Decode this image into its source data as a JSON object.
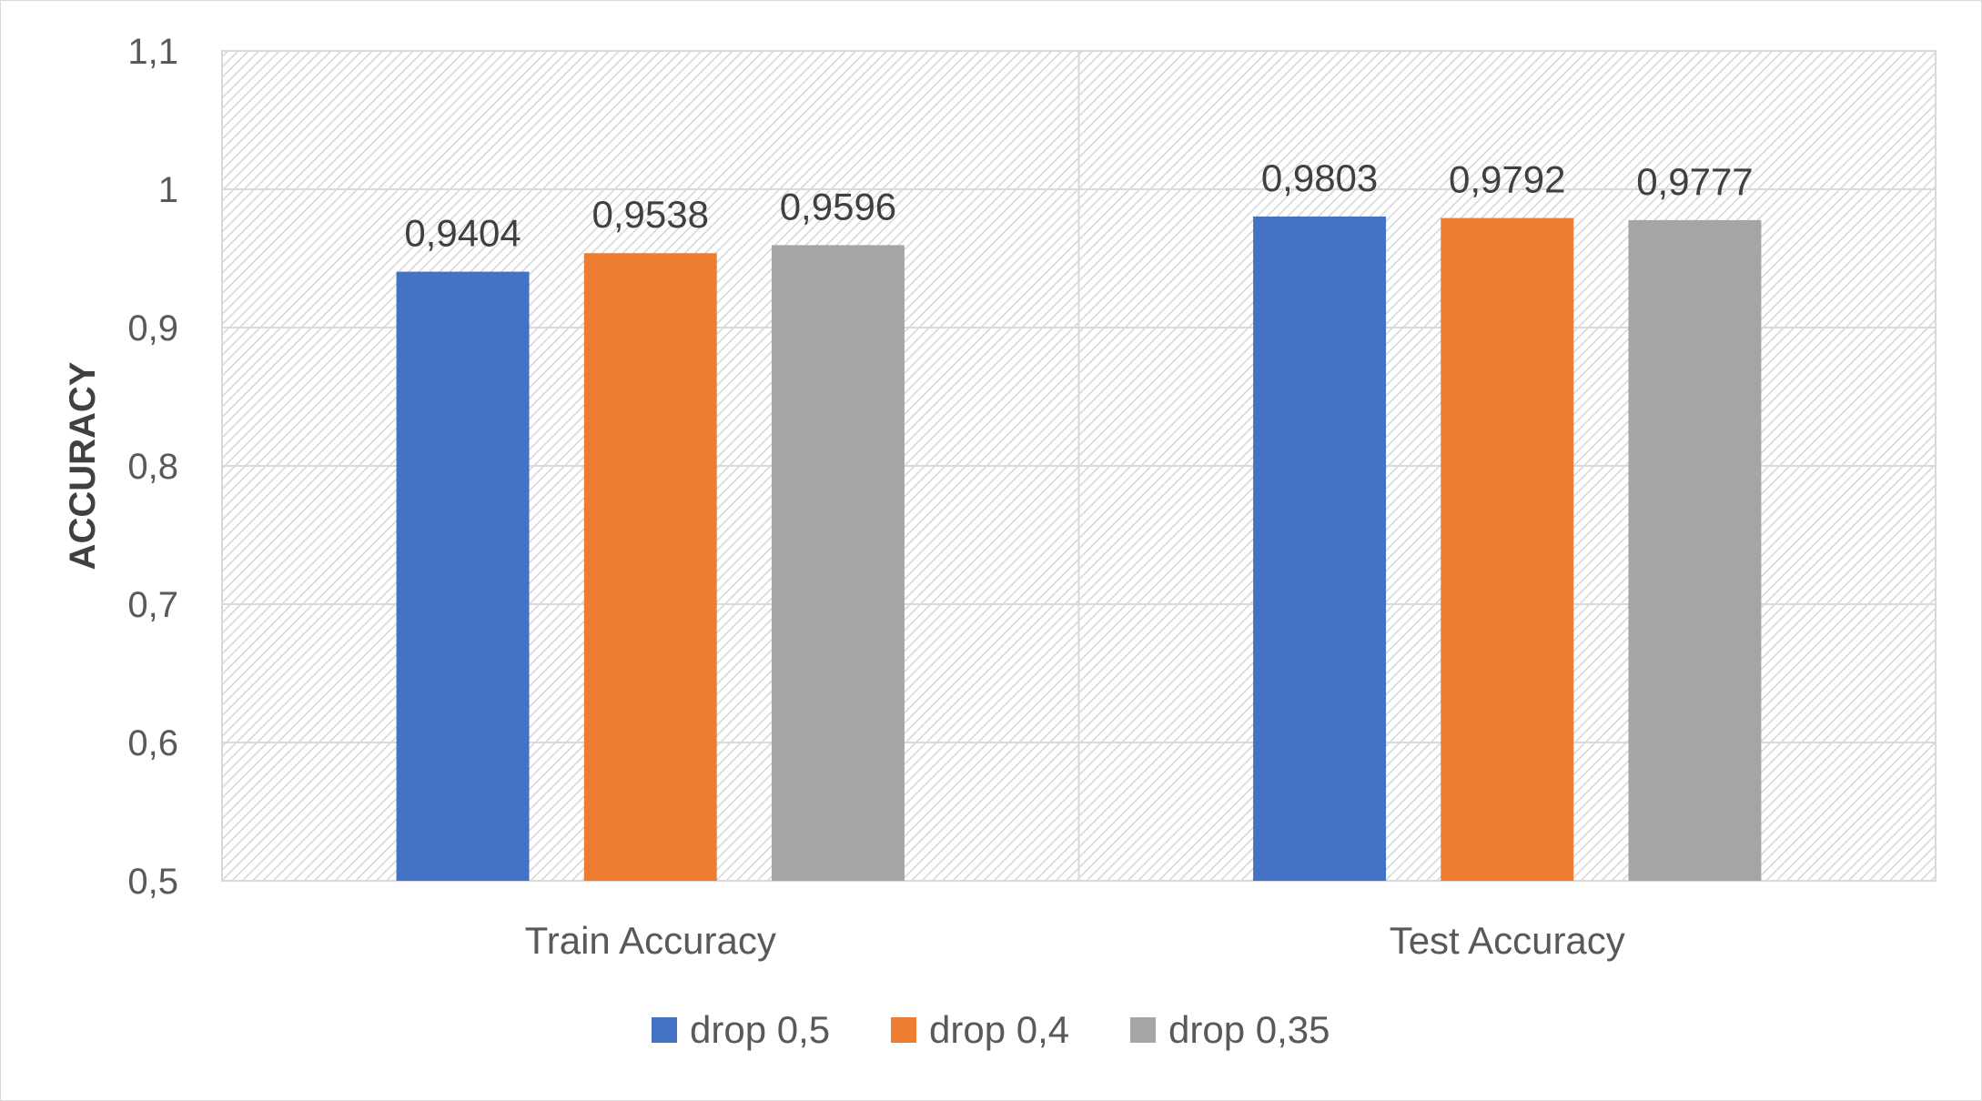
{
  "chart_data": {
    "type": "bar",
    "title": "",
    "xlabel": "",
    "ylabel": "ACCURACY",
    "categories": [
      "Train Accuracy",
      "Test Accuracy"
    ],
    "series": [
      {
        "name": "drop 0,5",
        "values": [
          0.9404,
          0.9803
        ],
        "labels": [
          "0,9404",
          "0,9803"
        ],
        "color": "#4472C4"
      },
      {
        "name": "drop 0,4",
        "values": [
          0.9538,
          0.9792
        ],
        "labels": [
          "0,9538",
          "0,9792"
        ],
        "color": "#ED7D31"
      },
      {
        "name": "drop 0,35",
        "values": [
          0.9596,
          0.9777
        ],
        "labels": [
          "0,9596",
          "0,9777"
        ],
        "color": "#A5A5A5"
      }
    ],
    "ylim": [
      0.5,
      1.1
    ],
    "yticks": [
      0.5,
      0.6,
      0.7,
      0.8,
      0.9,
      1.0,
      1.1
    ],
    "ytick_labels": [
      "0,5",
      "0,6",
      "0,7",
      "0,8",
      "0,9",
      "1",
      "1,1"
    ],
    "grid": true,
    "legend_position": "bottom",
    "plot_background": "hatched light gray"
  }
}
